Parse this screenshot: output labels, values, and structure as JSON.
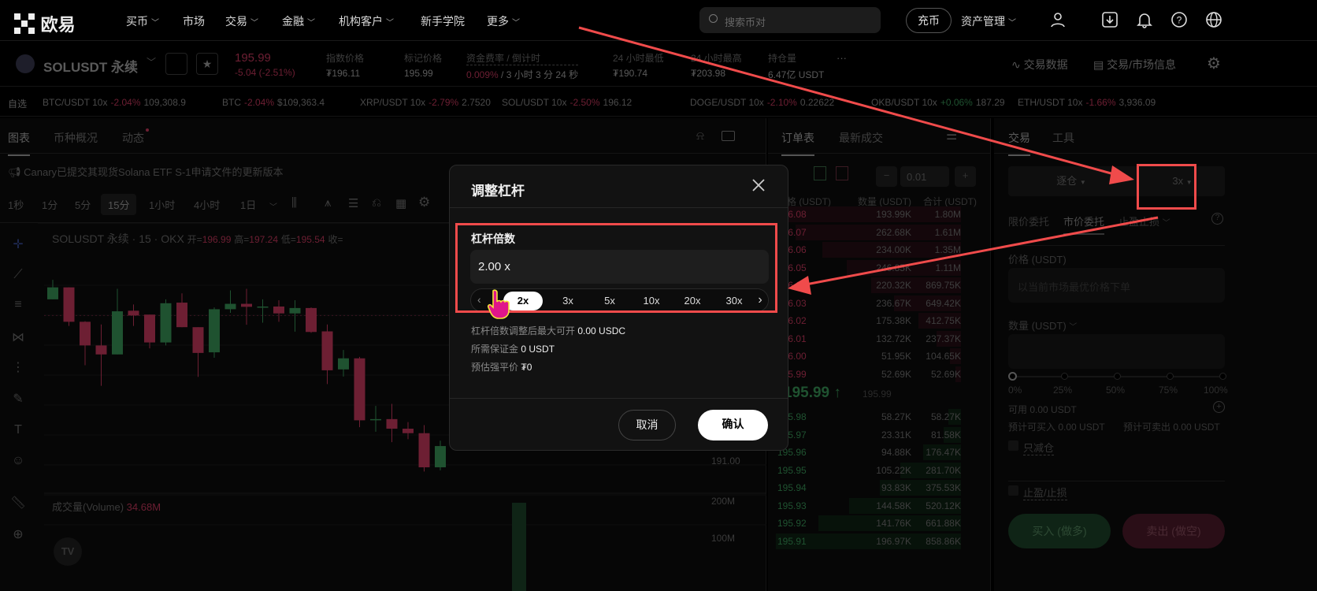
{
  "topnav": {
    "logo": "欧易",
    "items": [
      {
        "label": "买币",
        "dropdown": true
      },
      {
        "label": "市场",
        "dropdown": false
      },
      {
        "label": "交易",
        "dropdown": true
      },
      {
        "label": "金融",
        "dropdown": true
      },
      {
        "label": "机构客户",
        "dropdown": true
      },
      {
        "label": "新手学院",
        "dropdown": false
      },
      {
        "label": "更多",
        "dropdown": true
      }
    ],
    "search_placeholder": "搜索币对",
    "deposit": "充币",
    "assets": "资产管理",
    "icons": [
      "user-icon",
      "download-icon",
      "bell-icon",
      "help-icon",
      "globe-icon"
    ]
  },
  "instrument": {
    "name": "SOLUSDT 永续",
    "price": "195.99",
    "change": "-5.04 (-2.51%)",
    "stats": [
      {
        "label": "指数价格",
        "value": "₮196.11"
      },
      {
        "label": "标记价格",
        "value": "195.99"
      },
      {
        "label": "资金费率 / 倒计时",
        "value_rate": "0.009%",
        "value": " / 3 小时 3 分 24 秒"
      },
      {
        "label": "24 小时最低",
        "value": "₮190.74"
      },
      {
        "label": "24 小时最高",
        "value": "₮203.98"
      },
      {
        "label": "持仓量",
        "value": "6.47亿 USDT"
      }
    ],
    "more": "···",
    "trade_data": "交易数据",
    "market_info": "交易/市场信息"
  },
  "watchlist": {
    "label": "自选",
    "items": [
      {
        "name": "BTC/USDT 10x",
        "change": "-2.04%",
        "price": "109,308.9",
        "up": false
      },
      {
        "name": "BTC",
        "change": "-2.04%",
        "price": "$109,363.4",
        "up": false
      },
      {
        "name": "XRP/USDT 10x",
        "change": "-2.79%",
        "price": "2.7520",
        "up": false
      },
      {
        "name": "SOL/USDT 10x",
        "change": "-2.50%",
        "price": "196.12",
        "up": false
      },
      {
        "name": "DOGE/USDT 10x",
        "change": "-2.10%",
        "price": "0.22622",
        "up": false
      },
      {
        "name": "OKB/USDT 10x",
        "change": "+0.06%",
        "price": "187.29",
        "up": true
      },
      {
        "name": "ETH/USDT 10x",
        "change": "-1.66%",
        "price": "3,936.09",
        "up": false
      }
    ]
  },
  "chart_panel": {
    "tabs": [
      "图表",
      "币种概况",
      "动态"
    ],
    "notice": "Canary已提交其现货Solana ETF S-1申请文件的更新版本",
    "timeframes": [
      "1秒",
      "1分",
      "5分",
      "15分",
      "1小时",
      "4小时",
      "1日"
    ],
    "active_timeframe": "15分",
    "legend": {
      "symbol": "SOLUSDT 永续 · 15 · OKX",
      "open_label": "开=",
      "open": "196.99",
      "high_label": "高=",
      "high": "197.24",
      "low_label": "低=",
      "low": "195.54",
      "close_label": "收="
    },
    "price_label": "191.00",
    "volume_label": "成交量(Volume)",
    "volume_value": "34.68M",
    "volume_ticks": [
      "200M",
      "100M"
    ]
  },
  "chart_data": {
    "type": "candlestick",
    "current_price": 195.99,
    "candles": [
      {
        "o": 196.53,
        "h": 197.18,
        "l": 196.53,
        "c": 196.93
      },
      {
        "o": 196.93,
        "h": 196.93,
        "l": 195.64,
        "c": 195.78
      },
      {
        "o": 195.78,
        "h": 195.8,
        "l": 194.33,
        "c": 194.99
      },
      {
        "o": 194.99,
        "h": 195.69,
        "l": 193.64,
        "c": 194.69
      },
      {
        "o": 194.69,
        "h": 196.88,
        "l": 194.69,
        "c": 196.13
      },
      {
        "o": 196.15,
        "h": 196.36,
        "l": 195.64,
        "c": 195.99
      },
      {
        "o": 196.02,
        "h": 196.02,
        "l": 194.89,
        "c": 195.09
      },
      {
        "o": 195.09,
        "h": 196.53,
        "l": 194.99,
        "c": 196.4
      },
      {
        "o": 196.42,
        "h": 196.73,
        "l": 195.6,
        "c": 195.6
      },
      {
        "o": 195.6,
        "h": 195.6,
        "l": 193.94,
        "c": 194.74
      },
      {
        "o": 194.76,
        "h": 196.26,
        "l": 194.58,
        "c": 196.2
      },
      {
        "o": 196.2,
        "h": 196.83,
        "l": 196.08,
        "c": 196.38
      },
      {
        "o": 196.38,
        "h": 196.88,
        "l": 195.68,
        "c": 196.28
      },
      {
        "o": 196.27,
        "h": 196.53,
        "l": 195.75,
        "c": 196.29
      },
      {
        "o": 196.29,
        "h": 196.5,
        "l": 195.78,
        "c": 196.06
      },
      {
        "o": 196.06,
        "h": 196.5,
        "l": 195.45,
        "c": 196.24
      },
      {
        "o": 196.24,
        "h": 196.26,
        "l": 195.41,
        "c": 195.44
      },
      {
        "o": 195.46,
        "h": 195.69,
        "l": 193.7,
        "c": 194.16
      },
      {
        "o": 194.19,
        "h": 194.84,
        "l": 193.95,
        "c": 194.56
      },
      {
        "o": 194.56,
        "h": 194.61,
        "l": 192.26,
        "c": 192.49
      },
      {
        "o": 192.5,
        "h": 192.97,
        "l": 192.11,
        "c": 192.53
      },
      {
        "o": 192.53,
        "h": 193.04,
        "l": 191.76,
        "c": 192.21
      },
      {
        "o": 192.21,
        "h": 192.43,
        "l": 191.86,
        "c": 192.06
      },
      {
        "o": 192.06,
        "h": 192.33,
        "l": 190.78,
        "c": 190.92
      },
      {
        "o": 190.92,
        "h": 191.81,
        "l": 190.82,
        "c": 191.63
      }
    ],
    "up_color": "#1f5230",
    "down_color": "#6d1f33"
  },
  "orderbook": {
    "tabs": [
      "订单表",
      "最新成交"
    ],
    "tick": "0.01",
    "headers": [
      "价格 (USDT)",
      "数量 (USDT)",
      "合计 (USDT)"
    ],
    "asks": [
      [
        "196.08",
        "193.99K",
        "1.80M"
      ],
      [
        "196.07",
        "262.68K",
        "1.61M"
      ],
      [
        "196.06",
        "234.00K",
        "1.35M"
      ],
      [
        "196.05",
        "246.85K",
        "1.11M"
      ],
      [
        "196.04",
        "220.32K",
        "869.75K"
      ],
      [
        "196.03",
        "236.67K",
        "649.42K"
      ],
      [
        "196.02",
        "175.38K",
        "412.75K"
      ],
      [
        "196.01",
        "132.72K",
        "237.37K"
      ],
      [
        "196.00",
        "51.95K",
        "104.65K"
      ],
      [
        "195.99",
        "52.69K",
        "52.69K"
      ]
    ],
    "mid_price": "195.99 ↑",
    "mid_mark": "195.99",
    "bids": [
      [
        "195.98",
        "58.27K",
        "58.27K"
      ],
      [
        "195.97",
        "23.31K",
        "81.58K"
      ],
      [
        "195.96",
        "94.88K",
        "176.47K"
      ],
      [
        "195.95",
        "105.22K",
        "281.70K"
      ],
      [
        "195.94",
        "93.83K",
        "375.53K"
      ],
      [
        "195.93",
        "144.58K",
        "520.12K"
      ],
      [
        "195.92",
        "141.76K",
        "661.88K"
      ],
      [
        "195.91",
        "196.97K",
        "858.86K"
      ]
    ]
  },
  "trade": {
    "tabs": [
      "交易",
      "工具"
    ],
    "margin_mode": "逐仓",
    "leverage": "3x",
    "order_types": [
      "限价委托",
      "市价委托",
      "止盈止损"
    ],
    "active_order_type": "市价委托",
    "price_label": "价格 (USDT)",
    "price_placeholder": "以当前市场最优价格下单",
    "qty_label": "数量 (USDT)",
    "slider_marks": [
      "0%",
      "25%",
      "50%",
      "75%",
      "100%"
    ],
    "slider_value": 0,
    "available": "可用 0.00 USDT",
    "est_buy": "预计可买入 0.00 USDT",
    "est_sell": "预计可卖出 0.00 USDT",
    "reduce_only": "只减仓",
    "tp_sl": "止盈/止损",
    "buy": "买入 (做多)",
    "sell": "卖出 (做空)"
  },
  "modal": {
    "title": "调整杠杆",
    "field_label": "杠杆倍数",
    "value": "2.00 x",
    "presets": [
      "2x",
      "3x",
      "5x",
      "10x",
      "20x",
      "30x"
    ],
    "selected": "2x",
    "info": [
      {
        "label": "杠杆倍数调整后最大可开",
        "value": "0.00 USDC"
      },
      {
        "label": "所需保证金",
        "value": "0 USDT"
      },
      {
        "label": "预估强平价",
        "value": "₮0"
      }
    ],
    "cancel": "取消",
    "confirm": "确认"
  },
  "annotation_color": "#f04b4b"
}
